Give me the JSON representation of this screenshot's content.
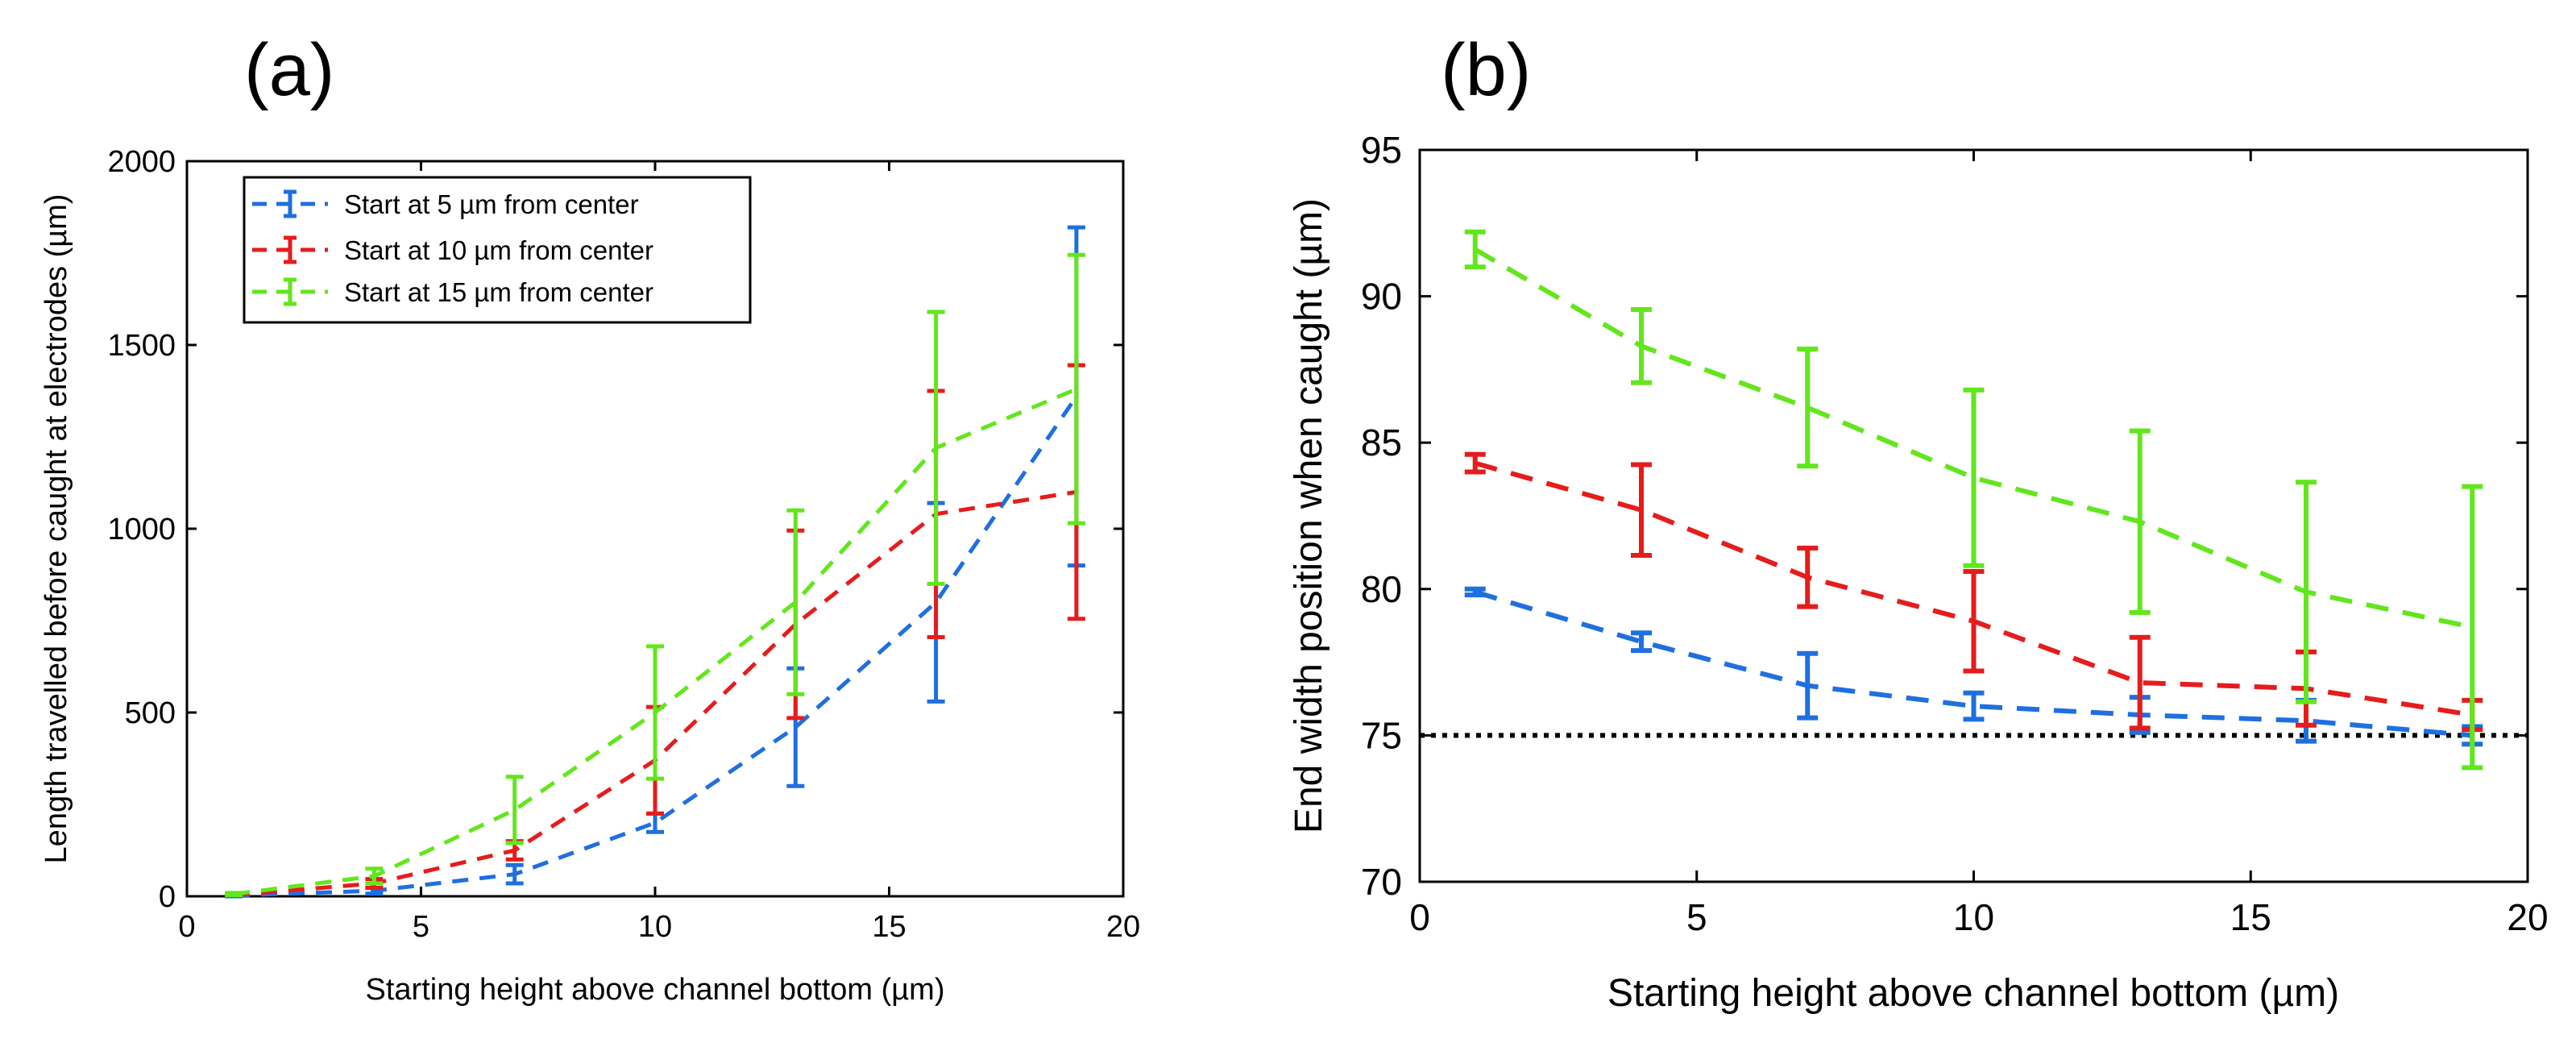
{
  "chart_data": [
    {
      "panel": "(a)",
      "type": "line",
      "xlabel": "Starting height above channel bottom (µm)",
      "ylabel": "Length travelled before caught at electrodes (µm)",
      "xlim": [
        0,
        20
      ],
      "ylim": [
        0,
        2000
      ],
      "xticks": [
        0,
        5,
        10,
        15,
        20
      ],
      "yticks": [
        0,
        500,
        1000,
        1500,
        2000
      ],
      "x": [
        1,
        4,
        7,
        10,
        13,
        16,
        19
      ],
      "series": [
        {
          "name": "Start at 5 µm from center",
          "color": "#1f6fe0",
          "values": [
            2,
            15,
            60,
            200,
            460,
            800,
            1360
          ],
          "err": [
            2,
            8,
            25,
            25,
            160,
            270,
            460
          ]
        },
        {
          "name": "Start at 10 µm from center",
          "color": "#e61c1c",
          "values": [
            3,
            35,
            125,
            370,
            740,
            1040,
            1100
          ],
          "err": [
            2,
            12,
            25,
            145,
            255,
            335,
            345
          ]
        },
        {
          "name": "Start at 15 µm from center",
          "color": "#62e61c",
          "values": [
            6,
            55,
            235,
            500,
            800,
            1220,
            1380
          ],
          "err": [
            3,
            20,
            90,
            180,
            250,
            370,
            365
          ]
        }
      ],
      "legend_position": "top-left"
    },
    {
      "panel": "(b)",
      "type": "line",
      "xlabel": "Starting height above channel bottom (µm)",
      "ylabel": "End width position when caught (µm)",
      "xlim": [
        0,
        20
      ],
      "ylim": [
        70,
        95
      ],
      "xticks": [
        0,
        5,
        10,
        15,
        20
      ],
      "yticks": [
        70,
        75,
        80,
        85,
        90,
        95
      ],
      "x": [
        1,
        4,
        7,
        10,
        13,
        16,
        19
      ],
      "reference_line": 75,
      "series": [
        {
          "name": "Start at 5 µm from center",
          "color": "#1f6fe0",
          "values": [
            79.9,
            78.2,
            76.7,
            76.0,
            75.7,
            75.5,
            75.0
          ],
          "err": [
            0.1,
            0.3,
            1.1,
            0.45,
            0.6,
            0.7,
            0.3
          ]
        },
        {
          "name": "Start at 10 µm from center",
          "color": "#e61c1c",
          "values": [
            84.3,
            82.7,
            80.4,
            78.9,
            76.8,
            76.6,
            75.7
          ],
          "err": [
            0.3,
            1.55,
            1.0,
            1.7,
            1.55,
            1.25,
            0.5
          ]
        },
        {
          "name": "Start at 15 µm from center",
          "color": "#62e61c",
          "values": [
            91.6,
            88.3,
            86.2,
            83.8,
            82.3,
            79.9,
            78.7
          ],
          "err": [
            0.6,
            1.25,
            2.0,
            3.0,
            3.1,
            3.75,
            4.8
          ]
        }
      ]
    }
  ]
}
